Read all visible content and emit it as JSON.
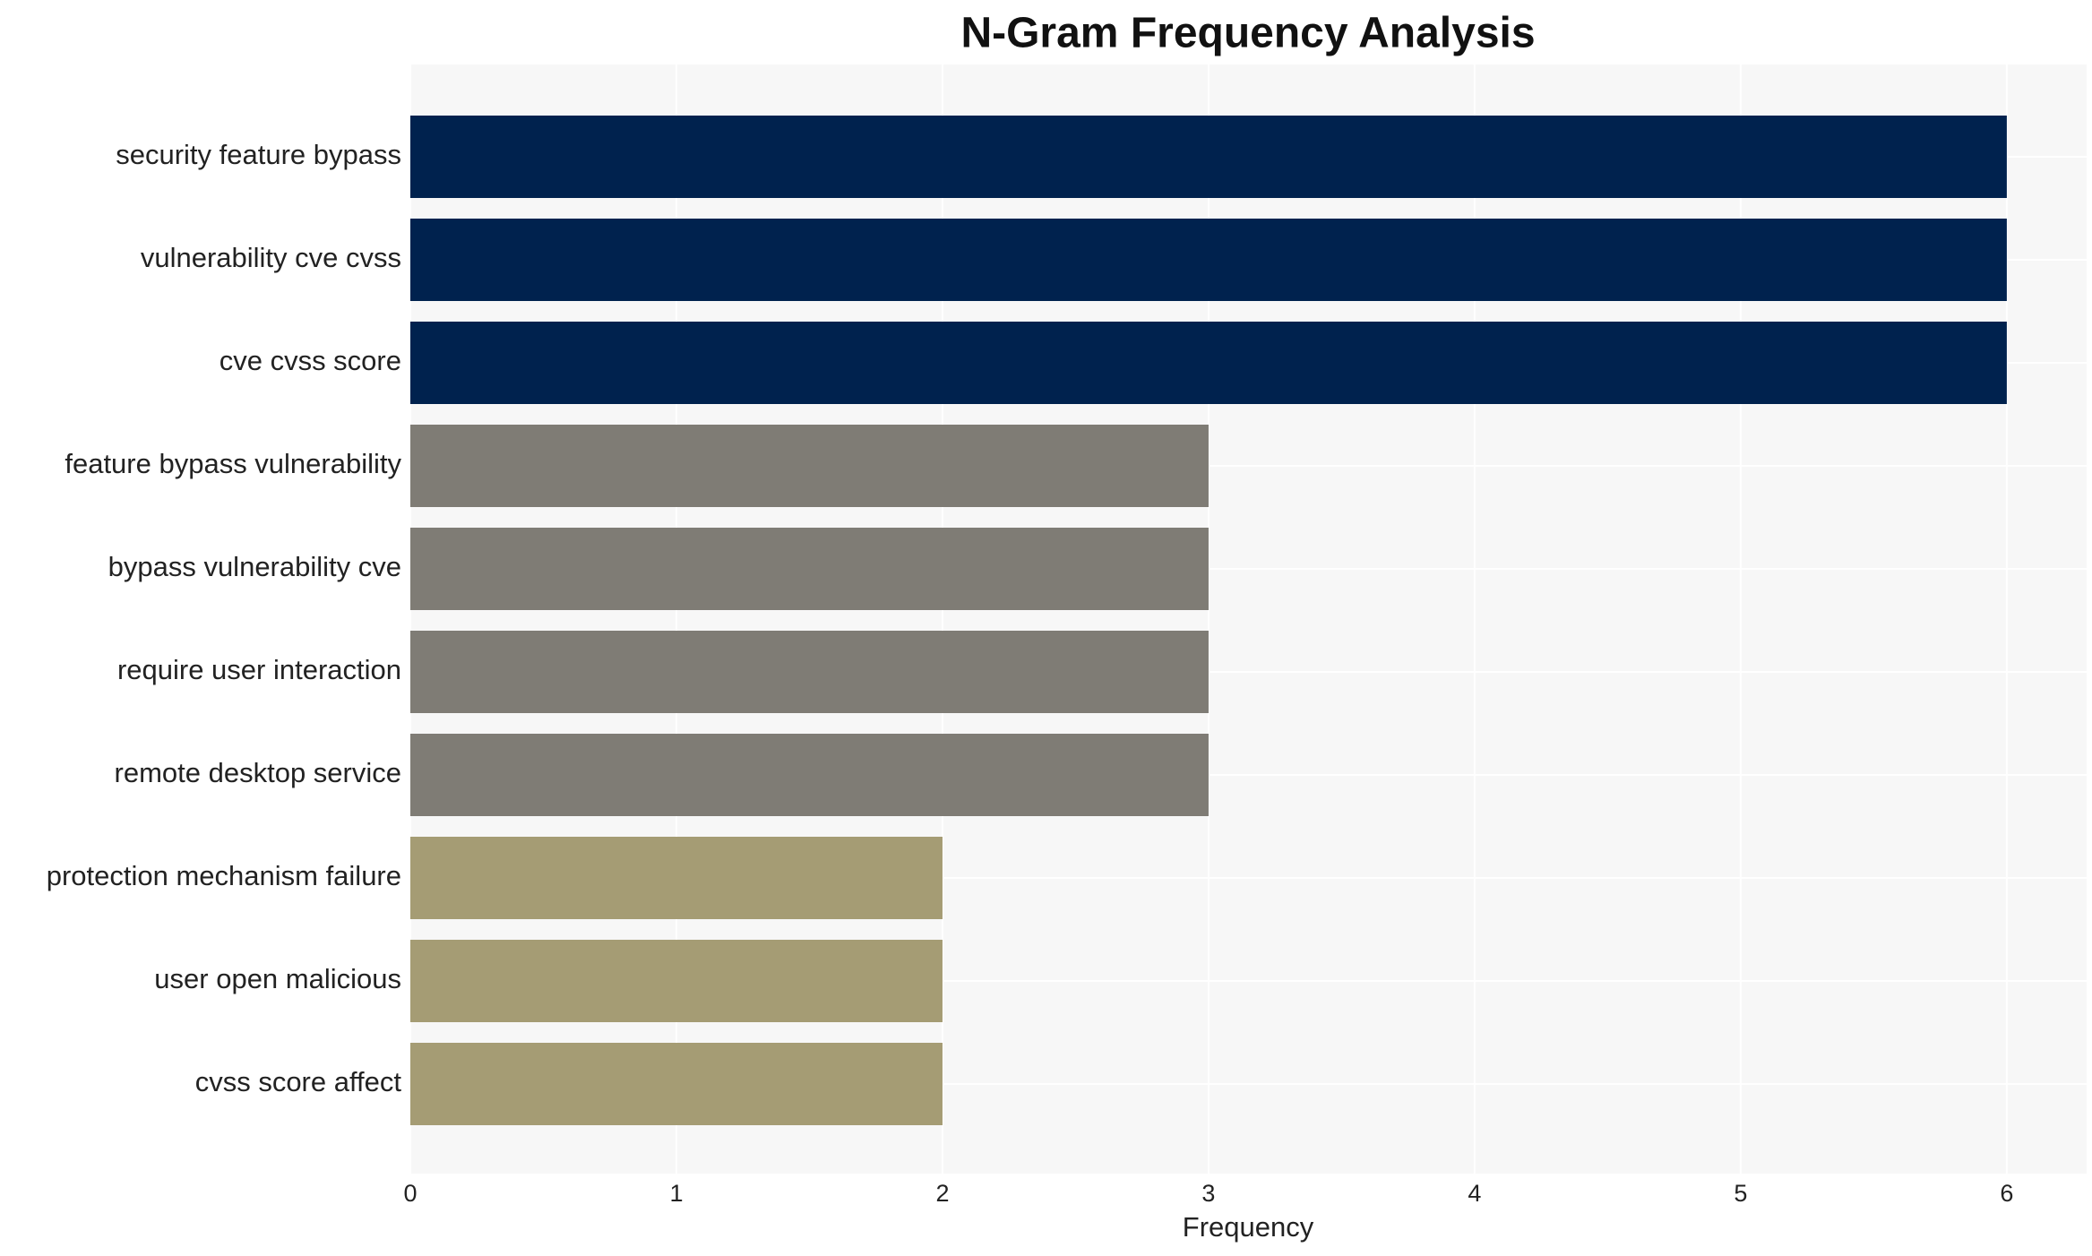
{
  "chart_data": {
    "type": "bar",
    "orientation": "horizontal",
    "title": "N-Gram Frequency Analysis",
    "x_label": "Frequency",
    "categories": [
      "security feature bypass",
      "vulnerability cve cvss",
      "cve cvss score",
      "feature bypass vulnerability",
      "bypass vulnerability cve",
      "require user interaction",
      "remote desktop service",
      "protection mechanism failure",
      "user open malicious",
      "cvss score affect"
    ],
    "values": [
      6,
      6,
      6,
      3,
      3,
      3,
      3,
      2,
      2,
      2
    ],
    "colors": [
      "#00224e",
      "#00224e",
      "#00224e",
      "#7f7c75",
      "#7f7c75",
      "#7f7c75",
      "#7f7c75",
      "#a59c74",
      "#a59c74",
      "#a59c74"
    ],
    "xlim": [
      0,
      6.3
    ],
    "xticks": [
      0,
      1,
      2,
      3,
      4,
      5,
      6
    ],
    "grid": true
  }
}
